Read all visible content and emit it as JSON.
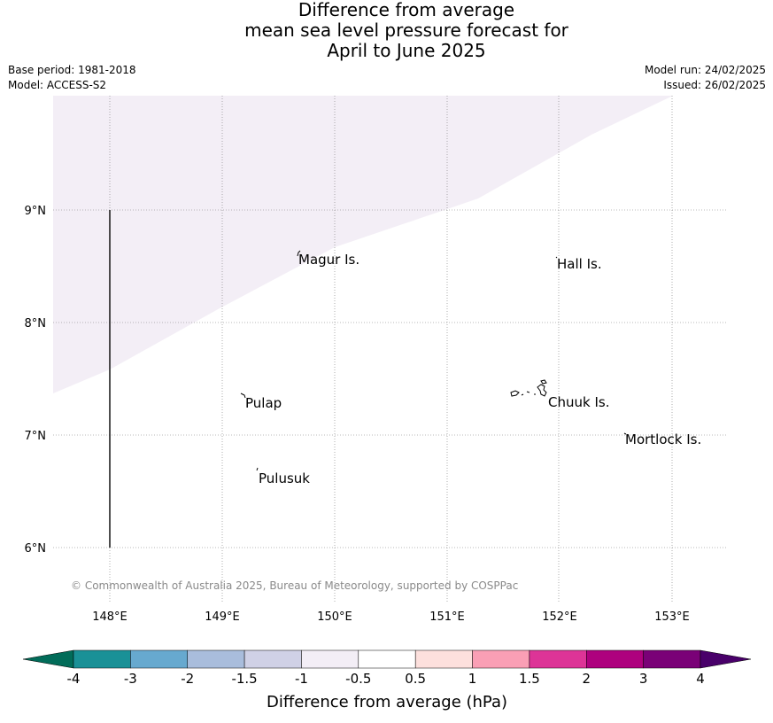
{
  "title": {
    "line1": "Difference from average",
    "line2": "mean sea level pressure forecast for",
    "line3": "April to June 2025"
  },
  "meta": {
    "base_period": "Base period: 1981-2018",
    "model": "Model: ACCESS-S2",
    "model_run": "Model run: 24/02/2025",
    "issued": "Issued: 26/02/2025"
  },
  "map": {
    "lon_ticks": [
      "148°E",
      "149°E",
      "150°E",
      "151°E",
      "152°E",
      "153°E"
    ],
    "lat_ticks": [
      "9°N",
      "8°N",
      "7°N",
      "6°N"
    ],
    "places": [
      "Magur Is.",
      "Hall Is.",
      "Pulap",
      "Chuuk Is.",
      "Mortlock Is.",
      "Pulusuk"
    ],
    "copyright": "© Commonwealth of Australia 2025, Bureau of Meteorology, supported by COSPPac",
    "shaded_category": "-1 to -0.5",
    "shaded_color": "#f3eef6"
  },
  "colorbar": {
    "labels": [
      "-4",
      "-3",
      "-2",
      "-1.5",
      "-1",
      "-0.5",
      "0.5",
      "1",
      "1.5",
      "2",
      "3",
      "4"
    ],
    "colors": [
      "#1a9197",
      "#67a9cf",
      "#a9bddc",
      "#d0d1e6",
      "#f3eef6",
      "#ffffff",
      "#fde0dd",
      "#fa9fb5",
      "#dd3497",
      "#ae017e",
      "#7a0177"
    ],
    "under_color": "#016c59",
    "over_color": "#49006a",
    "axis_label": "Difference from average (hPa)"
  }
}
